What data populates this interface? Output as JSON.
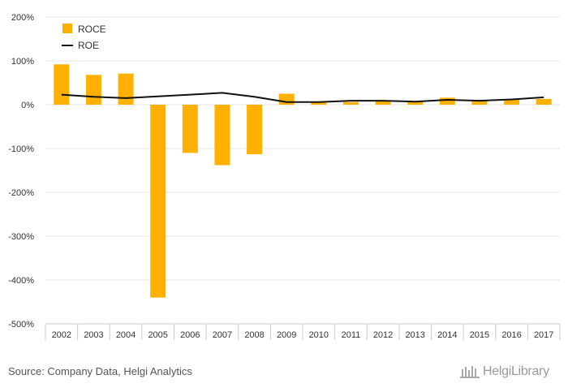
{
  "chart_data": {
    "type": "bar",
    "categories": [
      "2002",
      "2003",
      "2004",
      "2005",
      "2006",
      "2007",
      "2008",
      "2009",
      "2010",
      "2011",
      "2012",
      "2013",
      "2014",
      "2015",
      "2016",
      "2017"
    ],
    "series": [
      {
        "name": "ROCE",
        "type": "bar",
        "color": "#FFB000",
        "values": [
          92,
          68,
          71,
          -440,
          -110,
          -138,
          -113,
          25,
          5,
          6,
          8,
          7,
          16,
          11,
          12,
          13
        ]
      },
      {
        "name": "ROE",
        "type": "line",
        "color": "#111111",
        "values": [
          23,
          18,
          15,
          19,
          23,
          27,
          18,
          6,
          6,
          9,
          9,
          7,
          11,
          9,
          12,
          17
        ]
      }
    ],
    "ylim": [
      -500,
      200
    ],
    "yticks": [
      "200%",
      "100%",
      "0%",
      "-100%",
      "-200%",
      "-300%",
      "-400%",
      "-500%"
    ],
    "ytick_values": [
      200,
      100,
      0,
      -100,
      -200,
      -300,
      -400,
      -500
    ],
    "grid": true,
    "legend_position": "top-left"
  },
  "source_text": "Source: Company Data, Helgi Analytics",
  "logo_text": "HelgiLibrary"
}
